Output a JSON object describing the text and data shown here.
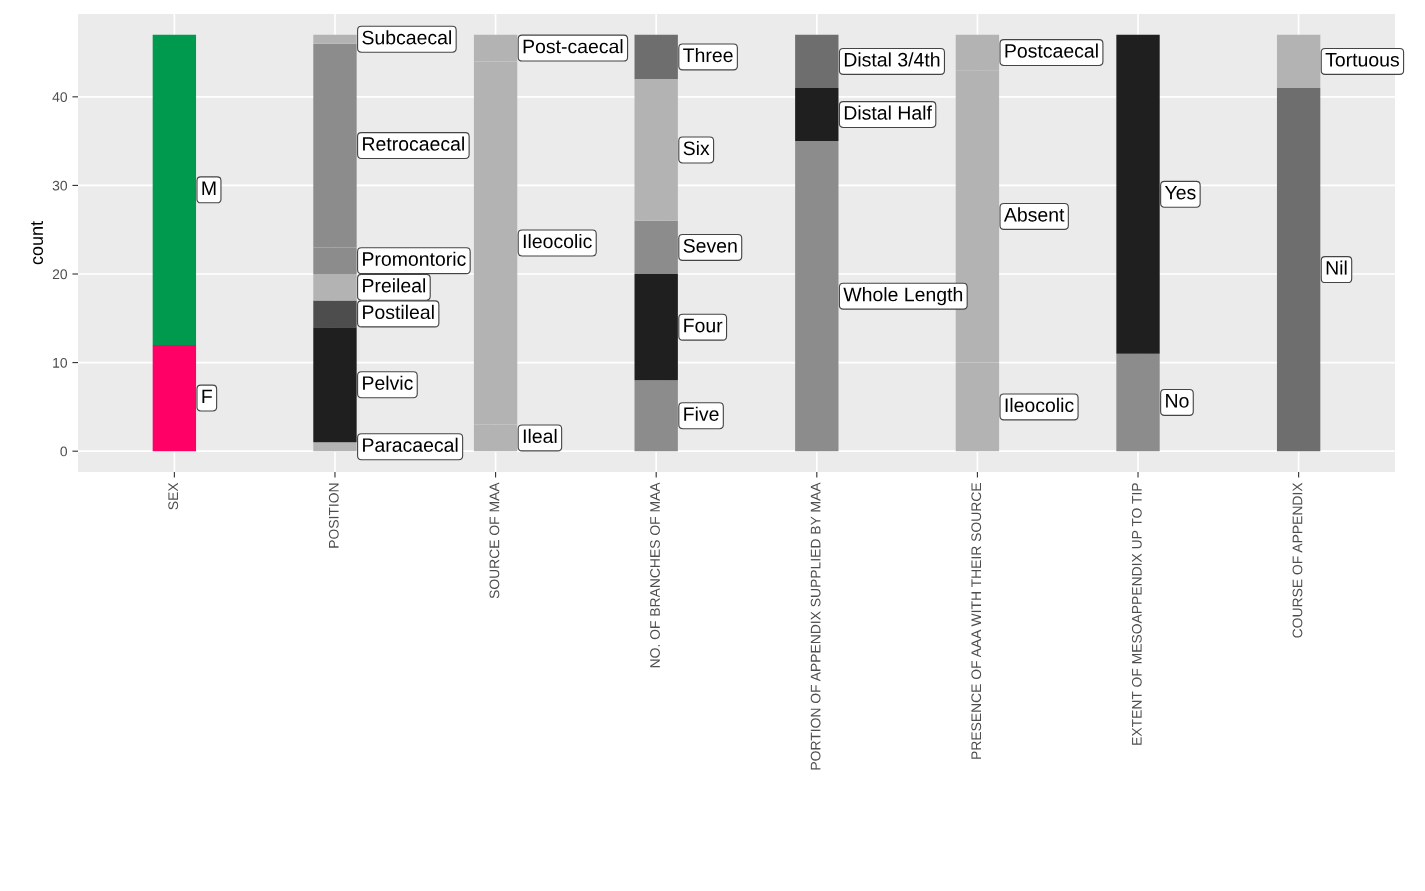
{
  "chart_data": {
    "type": "bar",
    "stacked": true,
    "ylabel": "count",
    "categories": [
      "SEX",
      "POSITION",
      "SOURCE OF MAA",
      "NO. OF BRANCHES OF MAA",
      "PORTION OF APPENDIX SUPPLIED BY MAA",
      "PRESENCE OF AAA WITH THEIR SOURCE",
      "EXTENT OF MESOAPPENDIX UP TO TIP",
      "COURSE OF APPENDIX"
    ],
    "ylim": [
      -2.35,
      49.35
    ],
    "yticks": [
      0,
      10,
      20,
      30,
      40
    ],
    "grid": true,
    "legend": false,
    "series": [
      {
        "name": "F",
        "color": "#ff0066",
        "values": [
          12,
          null,
          null,
          null,
          null,
          null,
          null,
          null
        ]
      },
      {
        "name": "M",
        "color": "#009a4e",
        "values": [
          35,
          null,
          null,
          null,
          null,
          null,
          null,
          null
        ]
      },
      {
        "name": "Paracaecal",
        "color": "#b3b3b3",
        "values": [
          null,
          1,
          null,
          null,
          null,
          null,
          null,
          null
        ]
      },
      {
        "name": "Pelvic",
        "color": "#1f1f1f",
        "values": [
          null,
          13,
          null,
          null,
          null,
          null,
          null,
          null
        ]
      },
      {
        "name": "Postileal",
        "color": "#4d4d4d",
        "values": [
          null,
          3,
          null,
          null,
          null,
          null,
          null,
          null
        ]
      },
      {
        "name": "Preileal",
        "color": "#b3b3b3",
        "values": [
          null,
          3,
          null,
          null,
          null,
          null,
          null,
          null
        ]
      },
      {
        "name": "Promontoric",
        "color": "#8c8c8c",
        "values": [
          null,
          3,
          null,
          null,
          null,
          null,
          null,
          null
        ]
      },
      {
        "name": "Retrocaecal",
        "color": "#8c8c8c",
        "values": [
          null,
          23,
          null,
          null,
          null,
          null,
          null,
          null
        ]
      },
      {
        "name": "Subcaecal",
        "color": "#b3b3b3",
        "values": [
          null,
          1,
          null,
          null,
          null,
          null,
          null,
          null
        ]
      },
      {
        "name": "Ileal",
        "color": "#b3b3b3",
        "values": [
          null,
          null,
          3,
          null,
          null,
          null,
          null,
          null
        ]
      },
      {
        "name": "Ileocolic",
        "color": "#b3b3b3",
        "values": [
          null,
          null,
          41,
          null,
          null,
          null,
          null,
          null
        ]
      },
      {
        "name": "Post-caecal",
        "color": "#b3b3b3",
        "values": [
          null,
          null,
          3,
          null,
          null,
          null,
          null,
          null
        ]
      },
      {
        "name": "Five",
        "color": "#8c8c8c",
        "values": [
          null,
          null,
          null,
          8,
          null,
          null,
          null,
          null
        ]
      },
      {
        "name": "Four",
        "color": "#1f1f1f",
        "values": [
          null,
          null,
          null,
          12,
          null,
          null,
          null,
          null
        ]
      },
      {
        "name": "Seven",
        "color": "#8c8c8c",
        "values": [
          null,
          null,
          null,
          6,
          null,
          null,
          null,
          null
        ]
      },
      {
        "name": "Six",
        "color": "#b3b3b3",
        "values": [
          null,
          null,
          null,
          16,
          null,
          null,
          null,
          null
        ]
      },
      {
        "name": "Three",
        "color": "#6e6e6e",
        "values": [
          null,
          null,
          null,
          5,
          null,
          null,
          null,
          null
        ]
      },
      {
        "name": "Whole Length",
        "color": "#8c8c8c",
        "values": [
          null,
          null,
          null,
          null,
          35,
          null,
          null,
          null
        ]
      },
      {
        "name": "Distal Half",
        "color": "#1f1f1f",
        "values": [
          null,
          null,
          null,
          null,
          6,
          null,
          null,
          null
        ]
      },
      {
        "name": "Distal 3/4th",
        "color": "#6e6e6e",
        "values": [
          null,
          null,
          null,
          null,
          6,
          null,
          null,
          null
        ]
      },
      {
        "name": "Ileocolic",
        "color": "#b3b3b3",
        "values": [
          null,
          null,
          null,
          null,
          null,
          10,
          null,
          null
        ]
      },
      {
        "name": "Absent",
        "color": "#b3b3b3",
        "values": [
          null,
          null,
          null,
          null,
          null,
          33,
          null,
          null
        ]
      },
      {
        "name": "Postcaecal",
        "color": "#b3b3b3",
        "values": [
          null,
          null,
          null,
          null,
          null,
          4,
          null,
          null
        ]
      },
      {
        "name": "No",
        "color": "#8c8c8c",
        "values": [
          null,
          null,
          null,
          null,
          null,
          null,
          11,
          null
        ]
      },
      {
        "name": "Yes",
        "color": "#1f1f1f",
        "values": [
          null,
          null,
          null,
          null,
          null,
          null,
          36,
          null
        ]
      },
      {
        "name": "Nil",
        "color": "#6e6e6e",
        "values": [
          null,
          null,
          null,
          null,
          null,
          null,
          null,
          41
        ]
      },
      {
        "name": "Tortuous",
        "color": "#b3b3b3",
        "values": [
          null,
          null,
          null,
          null,
          null,
          null,
          null,
          6
        ]
      }
    ]
  }
}
